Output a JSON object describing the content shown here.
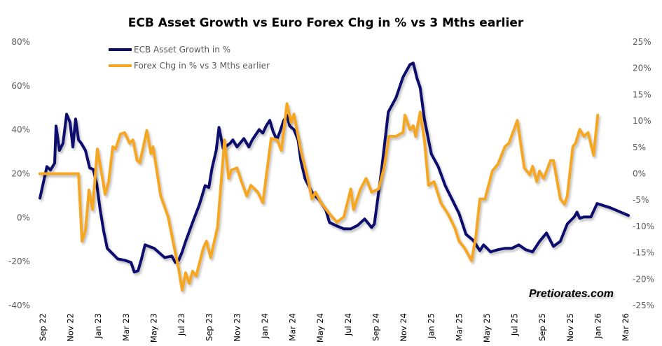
{
  "chart_data": {
    "type": "line",
    "title": "ECB Asset Growth vs Euro Forex Chg in % vs 3 Mths earlier",
    "x_unit": "months since Sep 2022",
    "x_tick_labels": [
      "Sep 22",
      "Nov 22",
      "Jan 23",
      "Mar 23",
      "May 23",
      "Jul 23",
      "Sep 23",
      "Nov 23",
      "Jan 24",
      "Mar 24",
      "May 24",
      "Jul 24",
      "Sep 24",
      "Nov 24",
      "Jan 25",
      "Mar 25",
      "May 25",
      "Jul 25",
      "Sep 25",
      "Nov 25",
      "Jan 26",
      "Mar 26"
    ],
    "xlim": [
      0,
      42
    ],
    "y_left": {
      "ylim": [
        -40,
        80
      ],
      "ticks": [
        "-40%",
        "-20%",
        "0%",
        "20%",
        "40%",
        "60%",
        "80%"
      ],
      "tick_values": [
        -40,
        -20,
        0,
        20,
        40,
        60,
        80
      ]
    },
    "y_right": {
      "ylim": [
        -25,
        25
      ],
      "ticks": [
        "-25%",
        "-20%",
        "-15%",
        "-10%",
        "-5%",
        "0%",
        "5%",
        "10%",
        "15%",
        "20%",
        "25%"
      ],
      "tick_values": [
        -25,
        -20,
        -15,
        -10,
        -5,
        0,
        5,
        10,
        15,
        20,
        25
      ]
    },
    "grid": false,
    "legend_placement": "top-left",
    "watermark": "Pretiorates.com",
    "series": [
      {
        "name": "ECB Asset Growth in %",
        "axis": "left",
        "color": "#0c0c6e",
        "points": [
          [
            -0.2,
            8.9
          ],
          [
            0.3,
            23.2
          ],
          [
            0.56,
            21.7
          ],
          [
            0.86,
            24.8
          ],
          [
            0.96,
            41.7
          ],
          [
            1.2,
            30.6
          ],
          [
            1.46,
            33.8
          ],
          [
            1.72,
            47.1
          ],
          [
            1.97,
            43.3
          ],
          [
            2.17,
            32.2
          ],
          [
            2.37,
            44.9
          ],
          [
            2.58,
            35.4
          ],
          [
            2.78,
            33.8
          ],
          [
            3.08,
            30.6
          ],
          [
            3.38,
            22.6
          ],
          [
            3.64,
            22.0
          ],
          [
            3.89,
            15.3
          ],
          [
            4.14,
            3.5
          ],
          [
            4.39,
            -6.1
          ],
          [
            4.65,
            -14.0
          ],
          [
            5.0,
            -16.2
          ],
          [
            5.4,
            -18.8
          ],
          [
            5.9,
            -19.4
          ],
          [
            6.36,
            -20.4
          ],
          [
            6.6,
            -24.8
          ],
          [
            6.87,
            -24.2
          ],
          [
            7.12,
            -18.8
          ],
          [
            7.37,
            -12.4
          ],
          [
            8.03,
            -14.0
          ],
          [
            8.79,
            -18.2
          ],
          [
            9.3,
            -17.5
          ],
          [
            9.55,
            -20.4
          ],
          [
            9.8,
            -19.4
          ],
          [
            10.05,
            -15.6
          ],
          [
            10.3,
            -10.8
          ],
          [
            10.8,
            -2.2
          ],
          [
            11.3,
            6.1
          ],
          [
            11.7,
            14.6
          ],
          [
            11.97,
            13.7
          ],
          [
            12.2,
            22.6
          ],
          [
            12.5,
            30.6
          ],
          [
            12.7,
            41.1
          ],
          [
            13.0,
            31.5
          ],
          [
            13.5,
            33.8
          ],
          [
            13.7,
            35.4
          ],
          [
            14.0,
            32.2
          ],
          [
            14.5,
            36.0
          ],
          [
            14.85,
            32.2
          ],
          [
            15.1,
            35.4
          ],
          [
            15.6,
            40.1
          ],
          [
            15.86,
            38.5
          ],
          [
            16.1,
            41.7
          ],
          [
            16.36,
            44.3
          ],
          [
            16.6,
            39.2
          ],
          [
            16.87,
            35.4
          ],
          [
            17.1,
            39.2
          ],
          [
            17.37,
            44.3
          ],
          [
            17.6,
            46.5
          ],
          [
            17.8,
            41.7
          ],
          [
            18.1,
            40.1
          ],
          [
            18.4,
            35.4
          ],
          [
            18.6,
            25.8
          ],
          [
            18.9,
            17.8
          ],
          [
            19.4,
            11.5
          ],
          [
            19.9,
            8.3
          ],
          [
            20.4,
            3.5
          ],
          [
            20.66,
            -2.2
          ],
          [
            21.2,
            -3.8
          ],
          [
            21.7,
            -5.1
          ],
          [
            22.2,
            -5.1
          ],
          [
            22.7,
            -3.5
          ],
          [
            23.2,
            -0.6
          ],
          [
            23.7,
            -4.5
          ],
          [
            23.9,
            -2.9
          ],
          [
            24.4,
            21.0
          ],
          [
            24.9,
            48.1
          ],
          [
            25.45,
            54.5
          ],
          [
            25.96,
            64.0
          ],
          [
            26.46,
            69.7
          ],
          [
            26.7,
            70.4
          ],
          [
            26.97,
            63.4
          ],
          [
            27.2,
            59.2
          ],
          [
            27.5,
            44.9
          ],
          [
            28.0,
            29.0
          ],
          [
            28.5,
            23.2
          ],
          [
            29.0,
            14.6
          ],
          [
            29.5,
            8.3
          ],
          [
            30.0,
            1.9
          ],
          [
            30.5,
            -7.6
          ],
          [
            31.0,
            -10.2
          ],
          [
            31.5,
            -15.0
          ],
          [
            31.77,
            -12.4
          ],
          [
            32.27,
            -15.6
          ],
          [
            32.8,
            -14.6
          ],
          [
            33.3,
            -14.0
          ],
          [
            33.8,
            -14.0
          ],
          [
            34.3,
            -12.4
          ],
          [
            34.8,
            -14.6
          ],
          [
            35.3,
            -15.6
          ],
          [
            35.8,
            -10.8
          ],
          [
            36.3,
            -7.0
          ],
          [
            36.8,
            -13.1
          ],
          [
            37.3,
            -10.8
          ],
          [
            37.8,
            -2.9
          ],
          [
            38.3,
            0.3
          ],
          [
            38.5,
            2.5
          ],
          [
            38.7,
            -0.3
          ],
          [
            38.99,
            0.3
          ],
          [
            39.5,
            0.3
          ],
          [
            39.95,
            6.4
          ],
          [
            40.9,
            4.5
          ],
          [
            42.2,
            1.0
          ]
        ]
      },
      {
        "name": "Forex Chg in % vs 3 Mths earlier",
        "axis": "right",
        "color": "#f5a623",
        "points": [
          [
            -0.2,
            0
          ],
          [
            2.58,
            0
          ],
          [
            2.83,
            -12.8
          ],
          [
            3.08,
            -10.8
          ],
          [
            3.33,
            -3.1
          ],
          [
            3.59,
            -6.8
          ],
          [
            3.94,
            4.7
          ],
          [
            4.5,
            -3.9
          ],
          [
            4.75,
            -1.5
          ],
          [
            5.05,
            5.1
          ],
          [
            5.25,
            4.7
          ],
          [
            5.6,
            7.5
          ],
          [
            5.9,
            7.8
          ],
          [
            6.26,
            5.8
          ],
          [
            6.5,
            6.4
          ],
          [
            6.8,
            2.5
          ],
          [
            7.0,
            2.1
          ],
          [
            7.5,
            8.2
          ],
          [
            7.8,
            3.8
          ],
          [
            7.95,
            5.1
          ],
          [
            8.5,
            -4.2
          ],
          [
            9.04,
            -8.2
          ],
          [
            9.44,
            -13.5
          ],
          [
            9.8,
            -18.1
          ],
          [
            10.05,
            -22.1
          ],
          [
            10.3,
            -18.8
          ],
          [
            10.56,
            -20.8
          ],
          [
            10.8,
            -18.5
          ],
          [
            11.06,
            -19.4
          ],
          [
            11.57,
            -14.1
          ],
          [
            11.8,
            -12.8
          ],
          [
            12.1,
            -15.9
          ],
          [
            12.6,
            -10.1
          ],
          [
            13.1,
            6.4
          ],
          [
            13.4,
            -0.9
          ],
          [
            13.6,
            0.7
          ],
          [
            14.0,
            1.1
          ],
          [
            14.3,
            -1.3
          ],
          [
            14.7,
            -4.2
          ],
          [
            15.0,
            -2.2
          ],
          [
            15.5,
            -3.5
          ],
          [
            15.86,
            -5.5
          ],
          [
            16.46,
            6.7
          ],
          [
            16.9,
            6.4
          ],
          [
            17.2,
            4.4
          ],
          [
            17.6,
            13.3
          ],
          [
            17.9,
            9.7
          ],
          [
            18.1,
            11.3
          ],
          [
            18.6,
            4.4
          ],
          [
            19.1,
            -0.9
          ],
          [
            19.4,
            -4.8
          ],
          [
            19.65,
            -3.5
          ],
          [
            20.05,
            -5.5
          ],
          [
            20.66,
            -7.6
          ],
          [
            21.2,
            -9.2
          ],
          [
            21.7,
            -8.2
          ],
          [
            22.2,
            -2.9
          ],
          [
            22.4,
            -6.8
          ],
          [
            22.9,
            -2.9
          ],
          [
            23.3,
            -0.9
          ],
          [
            23.7,
            -3.5
          ],
          [
            24.2,
            -2.9
          ],
          [
            24.6,
            1.1
          ],
          [
            24.95,
            7.1
          ],
          [
            25.45,
            7.1
          ],
          [
            25.96,
            7.8
          ],
          [
            26.1,
            11.1
          ],
          [
            26.46,
            8.4
          ],
          [
            26.7,
            9.1
          ],
          [
            26.87,
            7.1
          ],
          [
            27.2,
            11.7
          ],
          [
            27.5,
            6.4
          ],
          [
            27.8,
            -2.2
          ],
          [
            28.2,
            -1.5
          ],
          [
            28.7,
            -5.6
          ],
          [
            29.2,
            -7.6
          ],
          [
            29.7,
            -10.3
          ],
          [
            30.0,
            -12.8
          ],
          [
            30.4,
            -14.1
          ],
          [
            30.9,
            -16.5
          ],
          [
            31.2,
            -12.1
          ],
          [
            31.5,
            -4.8
          ],
          [
            31.87,
            -4.8
          ],
          [
            32.4,
            0.5
          ],
          [
            32.8,
            1.8
          ],
          [
            33.3,
            5.1
          ],
          [
            33.6,
            5.8
          ],
          [
            34.2,
            10.1
          ],
          [
            34.7,
            1.1
          ],
          [
            35.1,
            -0.2
          ],
          [
            35.3,
            1.4
          ],
          [
            35.6,
            -1.5
          ],
          [
            35.8,
            0.5
          ],
          [
            36.1,
            -0.9
          ],
          [
            36.6,
            2.5
          ],
          [
            36.8,
            2.5
          ],
          [
            37.3,
            -4.8
          ],
          [
            37.6,
            -5.8
          ],
          [
            37.8,
            -4.2
          ],
          [
            38.2,
            5.1
          ],
          [
            38.4,
            5.8
          ],
          [
            38.7,
            8.4
          ],
          [
            38.99,
            7.1
          ],
          [
            39.3,
            7.8
          ],
          [
            39.7,
            3.5
          ],
          [
            39.99,
            11.1
          ]
        ]
      }
    ]
  }
}
